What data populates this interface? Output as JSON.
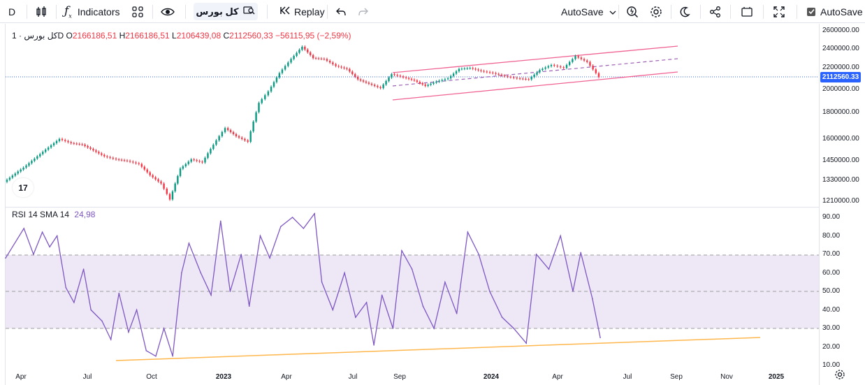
{
  "toolbar": {
    "interval": "D",
    "indicators_label": "Indicators",
    "symbol": "کل بورس",
    "replay_label": "Replay",
    "autosave_dropdown_label": "AutoSave",
    "autosave_checkbox_label": "AutoSave"
  },
  "legend": {
    "symbol": "کل بورس",
    "interval": "· 1D",
    "open_prefix": "O",
    "open": "2166186,51",
    "high_prefix": "H",
    "high": "2166186,51",
    "low_prefix": "L",
    "low": "2106439,08",
    "close_prefix": "C",
    "close": "2112560,33",
    "change": "−56115,95 (−2,59%)"
  },
  "rsi_legend": {
    "label": "RSI 14 SMA 14",
    "value": "24,98"
  },
  "last_price_badge": "2112560.33",
  "colors": {
    "up": "#089981",
    "down": "#f23645",
    "rsi_line": "#7e57c2",
    "rsi_band": "#ede7f6",
    "channel": "#f06292",
    "trendline": "#ffb74d",
    "price_line": "#2962ff"
  },
  "chart_data": [
    {
      "type": "line",
      "name": "price",
      "ylim": [
        1210000,
        2600000
      ],
      "scale": "log",
      "price_axis_ticks": [
        "2600000.00",
        "2400000.00",
        "2200000.00",
        "2000000.00",
        "1800000.00",
        "1600000.00",
        "1450000.00",
        "1330000.00",
        "1210000.00"
      ],
      "points": [
        {
          "x": "2022-03-25",
          "y": 1320000
        },
        {
          "x": "2022-04-10",
          "y": 1420000
        },
        {
          "x": "2022-04-25",
          "y": 1480000
        },
        {
          "x": "2022-05-10",
          "y": 1540000
        },
        {
          "x": "2022-05-25",
          "y": 1600000
        },
        {
          "x": "2022-06-10",
          "y": 1570000
        },
        {
          "x": "2022-06-25",
          "y": 1560000
        },
        {
          "x": "2022-07-10",
          "y": 1520000
        },
        {
          "x": "2022-07-25",
          "y": 1480000
        },
        {
          "x": "2022-08-10",
          "y": 1460000
        },
        {
          "x": "2022-08-25",
          "y": 1450000
        },
        {
          "x": "2022-09-10",
          "y": 1430000
        },
        {
          "x": "2022-09-25",
          "y": 1360000
        },
        {
          "x": "2022-10-10",
          "y": 1310000
        },
        {
          "x": "2022-10-22",
          "y": 1220000
        },
        {
          "x": "2022-11-05",
          "y": 1400000
        },
        {
          "x": "2022-11-20",
          "y": 1460000
        },
        {
          "x": "2022-12-05",
          "y": 1440000
        },
        {
          "x": "2022-12-20",
          "y": 1560000
        },
        {
          "x": "2023-01-05",
          "y": 1680000
        },
        {
          "x": "2023-01-20",
          "y": 1620000
        },
        {
          "x": "2023-02-05",
          "y": 1580000
        },
        {
          "x": "2023-02-20",
          "y": 1880000
        },
        {
          "x": "2023-03-05",
          "y": 1980000
        },
        {
          "x": "2023-03-20",
          "y": 2150000
        },
        {
          "x": "2023-04-05",
          "y": 2290000
        },
        {
          "x": "2023-04-20",
          "y": 2420000
        },
        {
          "x": "2023-05-05",
          "y": 2300000
        },
        {
          "x": "2023-05-20",
          "y": 2290000
        },
        {
          "x": "2023-06-05",
          "y": 2220000
        },
        {
          "x": "2023-06-20",
          "y": 2190000
        },
        {
          "x": "2023-07-05",
          "y": 2090000
        },
        {
          "x": "2023-07-20",
          "y": 2050000
        },
        {
          "x": "2023-08-05",
          "y": 2010000
        },
        {
          "x": "2023-08-20",
          "y": 2140000
        },
        {
          "x": "2023-09-05",
          "y": 2110000
        },
        {
          "x": "2023-09-20",
          "y": 2080000
        },
        {
          "x": "2023-10-05",
          "y": 2030000
        },
        {
          "x": "2023-10-20",
          "y": 2070000
        },
        {
          "x": "2023-11-05",
          "y": 2100000
        },
        {
          "x": "2023-11-20",
          "y": 2190000
        },
        {
          "x": "2023-12-05",
          "y": 2200000
        },
        {
          "x": "2023-12-20",
          "y": 2170000
        },
        {
          "x": "2024-01-05",
          "y": 2150000
        },
        {
          "x": "2024-01-20",
          "y": 2120000
        },
        {
          "x": "2024-02-05",
          "y": 2100000
        },
        {
          "x": "2024-02-20",
          "y": 2090000
        },
        {
          "x": "2024-03-05",
          "y": 2180000
        },
        {
          "x": "2024-03-20",
          "y": 2230000
        },
        {
          "x": "2024-04-05",
          "y": 2200000
        },
        {
          "x": "2024-04-20",
          "y": 2320000
        },
        {
          "x": "2024-05-05",
          "y": 2260000
        },
        {
          "x": "2024-05-20",
          "y": 2112560
        }
      ]
    },
    {
      "type": "line",
      "name": "RSI 14",
      "ylim": [
        10,
        95
      ],
      "rsi_axis_ticks": [
        "90.00",
        "80.00",
        "70.00",
        "60.00",
        "50.00",
        "40.00",
        "30.00",
        "20.00",
        "10.00"
      ],
      "band": [
        30,
        70
      ],
      "middle": 50,
      "points": [
        {
          "x": "2022-03-25",
          "y": 68
        },
        {
          "x": "2022-04-05",
          "y": 84
        },
        {
          "x": "2022-04-18",
          "y": 70
        },
        {
          "x": "2022-04-30",
          "y": 82
        },
        {
          "x": "2022-05-10",
          "y": 74
        },
        {
          "x": "2022-05-20",
          "y": 80
        },
        {
          "x": "2022-06-01",
          "y": 52
        },
        {
          "x": "2022-06-12",
          "y": 44
        },
        {
          "x": "2022-06-25",
          "y": 62
        },
        {
          "x": "2022-07-05",
          "y": 40
        },
        {
          "x": "2022-07-20",
          "y": 34
        },
        {
          "x": "2022-08-01",
          "y": 24
        },
        {
          "x": "2022-08-12",
          "y": 49
        },
        {
          "x": "2022-08-25",
          "y": 28
        },
        {
          "x": "2022-09-05",
          "y": 40
        },
        {
          "x": "2022-09-18",
          "y": 18
        },
        {
          "x": "2022-10-01",
          "y": 15
        },
        {
          "x": "2022-10-12",
          "y": 30
        },
        {
          "x": "2022-10-24",
          "y": 15
        },
        {
          "x": "2022-11-05",
          "y": 60
        },
        {
          "x": "2022-11-15",
          "y": 76
        },
        {
          "x": "2022-12-01",
          "y": 60
        },
        {
          "x": "2022-12-15",
          "y": 48
        },
        {
          "x": "2022-12-28",
          "y": 88
        },
        {
          "x": "2023-01-10",
          "y": 50
        },
        {
          "x": "2023-01-25",
          "y": 70
        },
        {
          "x": "2023-02-05",
          "y": 42
        },
        {
          "x": "2023-02-20",
          "y": 80
        },
        {
          "x": "2023-03-05",
          "y": 68
        },
        {
          "x": "2023-03-20",
          "y": 85
        },
        {
          "x": "2023-04-05",
          "y": 90
        },
        {
          "x": "2023-04-20",
          "y": 84
        },
        {
          "x": "2023-05-05",
          "y": 92
        },
        {
          "x": "2023-05-15",
          "y": 55
        },
        {
          "x": "2023-05-30",
          "y": 40
        },
        {
          "x": "2023-06-15",
          "y": 60
        },
        {
          "x": "2023-06-30",
          "y": 36
        },
        {
          "x": "2023-07-15",
          "y": 44
        },
        {
          "x": "2023-07-25",
          "y": 21
        },
        {
          "x": "2023-08-05",
          "y": 48
        },
        {
          "x": "2023-08-20",
          "y": 30
        },
        {
          "x": "2023-09-01",
          "y": 72
        },
        {
          "x": "2023-09-15",
          "y": 62
        },
        {
          "x": "2023-09-30",
          "y": 42
        },
        {
          "x": "2023-10-15",
          "y": 30
        },
        {
          "x": "2023-10-30",
          "y": 55
        },
        {
          "x": "2023-11-15",
          "y": 38
        },
        {
          "x": "2023-11-30",
          "y": 82
        },
        {
          "x": "2023-12-15",
          "y": 70
        },
        {
          "x": "2023-12-30",
          "y": 50
        },
        {
          "x": "2024-01-15",
          "y": 36
        },
        {
          "x": "2024-01-30",
          "y": 30
        },
        {
          "x": "2024-02-15",
          "y": 22
        },
        {
          "x": "2024-02-28",
          "y": 70
        },
        {
          "x": "2024-03-15",
          "y": 62
        },
        {
          "x": "2024-03-30",
          "y": 80
        },
        {
          "x": "2024-04-15",
          "y": 50
        },
        {
          "x": "2024-04-25",
          "y": 71
        },
        {
          "x": "2024-05-10",
          "y": 46
        },
        {
          "x": "2024-05-20",
          "y": 25
        }
      ]
    }
  ],
  "x_axis": {
    "ticks": [
      {
        "label": "Apr",
        "bold": false
      },
      {
        "label": "Jul",
        "bold": false
      },
      {
        "label": "Oct",
        "bold": false
      },
      {
        "label": "2023",
        "bold": true
      },
      {
        "label": "Apr",
        "bold": false
      },
      {
        "label": "Jul",
        "bold": false
      },
      {
        "label": "Sep",
        "bold": false
      },
      {
        "label": "2024",
        "bold": true
      },
      {
        "label": "Apr",
        "bold": false
      },
      {
        "label": "Jul",
        "bold": false
      },
      {
        "label": "Sep",
        "bold": false
      },
      {
        "label": "Nov",
        "bold": false
      },
      {
        "label": "2025",
        "bold": true
      }
    ]
  }
}
